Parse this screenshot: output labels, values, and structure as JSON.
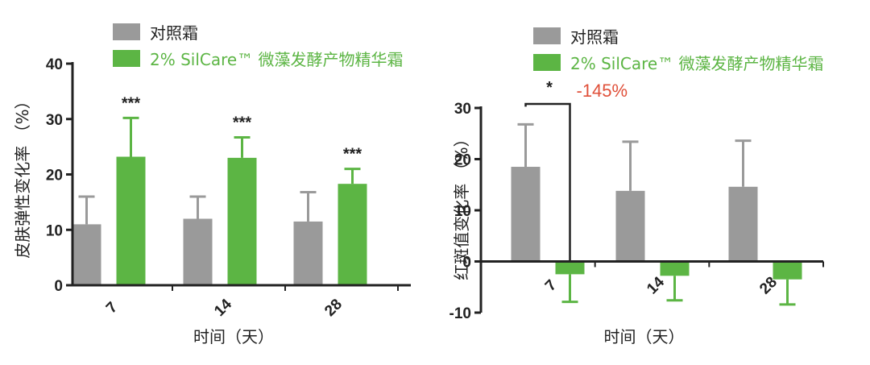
{
  "colors": {
    "control": "#9a9a9a",
    "treatment": "#5cb544",
    "annotation": "#e0503a",
    "axis": "#222222"
  },
  "chart_data": [
    {
      "type": "bar",
      "categories": [
        "7",
        "14",
        "28"
      ],
      "xlabel": "时间（天）",
      "ylabel": "皮肤弹性变化率 （%）",
      "ylim": [
        0,
        40
      ],
      "yticks": [
        0,
        10,
        20,
        30,
        40
      ],
      "legend_position": "top",
      "grid": false,
      "series": [
        {
          "name": "对照霜",
          "color_key": "control",
          "values": [
            11,
            12,
            11.5
          ],
          "error": [
            5,
            4,
            5.3
          ]
        },
        {
          "name": "2% SilCare™ 微藻发酵产物精华霜",
          "color_key": "treatment",
          "values": [
            23.2,
            23,
            18.3
          ],
          "error": [
            7,
            3.7,
            2.7
          ]
        }
      ],
      "significance": [
        "***",
        "***",
        "***"
      ]
    },
    {
      "type": "bar",
      "categories": [
        "7",
        "14",
        "28"
      ],
      "xlabel": "时间（天）",
      "ylabel": "红斑值变化率 （%）",
      "ylim": [
        -10,
        30
      ],
      "yticks": [
        -10,
        0,
        10,
        20,
        30
      ],
      "legend_position": "top",
      "grid": false,
      "series": [
        {
          "name": "对照霜",
          "color_key": "control",
          "values": [
            18.5,
            13.8,
            14.6
          ],
          "error": [
            8.3,
            9.6,
            9
          ]
        },
        {
          "name": "2% SilCare™ 微藻发酵产物精华霜",
          "color_key": "treatment",
          "values": [
            -2.5,
            -2.8,
            -3.5
          ],
          "error": [
            5.4,
            4.8,
            4.9
          ]
        }
      ],
      "significance_bracket": {
        "category": "7",
        "label": "*"
      },
      "annotation": "-145%"
    }
  ]
}
